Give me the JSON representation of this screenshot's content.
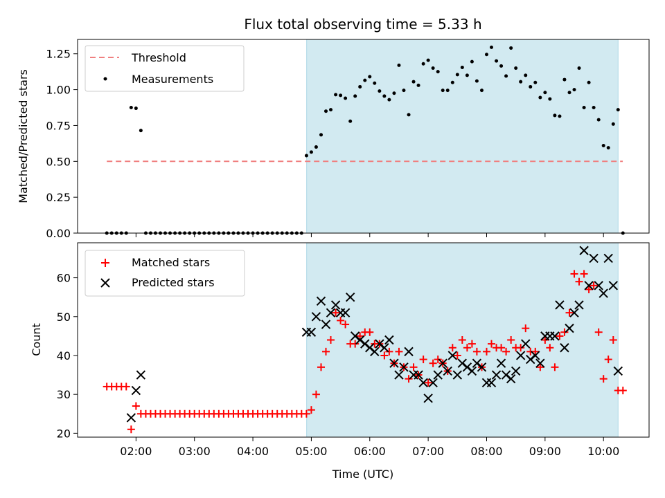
{
  "chart_data": [
    {
      "type": "scatter",
      "title": "Flux total observing time = 5.33 h",
      "ylabel": "Matched/Predicted stars",
      "ylim": [
        0,
        1.35
      ],
      "xlim": [
        1.0,
        10.78
      ],
      "yticks": [
        "0.00",
        "0.25",
        "0.50",
        "0.75",
        "1.00",
        "1.25"
      ],
      "ytick_values": [
        0,
        0.25,
        0.5,
        0.75,
        1.0,
        1.25
      ],
      "legend_position": "top-left",
      "shaded_interval": {
        "x0": 4.92,
        "x1": 10.25,
        "color": "#add8e6"
      },
      "threshold": {
        "name": "Threshold",
        "value": 0.5,
        "x0": 1.5,
        "x1": 10.33,
        "color": "#f08080"
      },
      "measurements": {
        "name": "Measurements",
        "color": "#000000",
        "x": [
          1.5,
          1.583,
          1.667,
          1.75,
          1.833,
          1.917,
          2.0,
          2.083,
          2.167,
          2.25,
          2.333,
          2.417,
          2.5,
          2.583,
          2.667,
          2.75,
          2.833,
          2.917,
          3.0,
          3.083,
          3.167,
          3.25,
          3.333,
          3.417,
          3.5,
          3.583,
          3.667,
          3.75,
          3.833,
          3.917,
          4.0,
          4.083,
          4.167,
          4.25,
          4.333,
          4.417,
          4.5,
          4.583,
          4.667,
          4.75,
          4.833,
          4.917,
          5.0,
          5.083,
          5.167,
          5.25,
          5.333,
          5.417,
          5.5,
          5.583,
          5.667,
          5.75,
          5.833,
          5.917,
          6.0,
          6.083,
          6.167,
          6.25,
          6.333,
          6.417,
          6.5,
          6.583,
          6.667,
          6.75,
          6.833,
          6.917,
          7.0,
          7.083,
          7.167,
          7.25,
          7.333,
          7.417,
          7.5,
          7.583,
          7.667,
          7.75,
          7.833,
          7.917,
          8.0,
          8.083,
          8.167,
          8.25,
          8.333,
          8.417,
          8.5,
          8.583,
          8.667,
          8.75,
          8.833,
          8.917,
          9.0,
          9.083,
          9.167,
          9.25,
          9.333,
          9.417,
          9.5,
          9.583,
          9.667,
          9.75,
          9.833,
          9.917,
          10.0,
          10.083,
          10.167,
          10.25,
          10.333
        ],
        "y": [
          0,
          0,
          0,
          0,
          0,
          0.875,
          0.87,
          0.715,
          0,
          0,
          0,
          0,
          0,
          0,
          0,
          0,
          0,
          0,
          0,
          0,
          0,
          0,
          0,
          0,
          0,
          0,
          0,
          0,
          0,
          0,
          0,
          0,
          0,
          0,
          0,
          0,
          0,
          0,
          0,
          0,
          0,
          0.54,
          0.565,
          0.6,
          0.685,
          0.85,
          0.86,
          0.965,
          0.96,
          0.94,
          0.78,
          0.955,
          1.02,
          1.065,
          1.09,
          1.045,
          0.99,
          0.955,
          0.93,
          0.975,
          1.17,
          0.995,
          0.825,
          1.055,
          1.03,
          1.18,
          1.205,
          1.15,
          1.125,
          0.995,
          0.995,
          1.05,
          1.105,
          1.155,
          1.1,
          1.195,
          1.06,
          0.995,
          1.245,
          1.295,
          1.2,
          1.165,
          1.095,
          1.29,
          1.15,
          1.055,
          1.1,
          1.02,
          1.05,
          0.945,
          0.98,
          0.935,
          0.82,
          0.815,
          1.07,
          0.98,
          1.0,
          1.15,
          0.875,
          1.05,
          0.875,
          0.79,
          0.61,
          0.595,
          0.76,
          0.86,
          0
        ]
      }
    },
    {
      "type": "scatter",
      "xlabel": "Time (UTC)",
      "ylabel": "Count",
      "ylim": [
        19,
        69
      ],
      "xlim": [
        1.0,
        10.78
      ],
      "yticks": [
        "20",
        "30",
        "40",
        "50",
        "60"
      ],
      "ytick_values": [
        20,
        30,
        40,
        50,
        60
      ],
      "xticks": [
        "02:00",
        "03:00",
        "04:00",
        "05:00",
        "06:00",
        "07:00",
        "08:00",
        "09:00",
        "10:00"
      ],
      "xtick_values": [
        2,
        3,
        4,
        5,
        6,
        7,
        8,
        9,
        10
      ],
      "legend_position": "top-left",
      "shaded_interval": {
        "x0": 4.92,
        "x1": 10.25,
        "color": "#add8e6"
      },
      "series": [
        {
          "name": "Matched stars",
          "marker": "plus",
          "color": "#ff0000",
          "x": [
            1.5,
            1.583,
            1.667,
            1.75,
            1.833,
            1.917,
            2.0,
            2.083,
            2.167,
            2.25,
            2.333,
            2.417,
            2.5,
            2.583,
            2.667,
            2.75,
            2.833,
            2.917,
            3.0,
            3.083,
            3.167,
            3.25,
            3.333,
            3.417,
            3.5,
            3.583,
            3.667,
            3.75,
            3.833,
            3.917,
            4.0,
            4.083,
            4.167,
            4.25,
            4.333,
            4.417,
            4.5,
            4.583,
            4.667,
            4.75,
            4.833,
            4.917,
            5.0,
            5.083,
            5.167,
            5.25,
            5.333,
            5.417,
            5.5,
            5.583,
            5.667,
            5.75,
            5.833,
            5.917,
            6.0,
            6.083,
            6.167,
            6.25,
            6.333,
            6.417,
            6.5,
            6.583,
            6.667,
            6.75,
            6.833,
            6.917,
            7.0,
            7.083,
            7.167,
            7.25,
            7.333,
            7.417,
            7.5,
            7.583,
            7.667,
            7.75,
            7.833,
            7.917,
            8.0,
            8.083,
            8.167,
            8.25,
            8.333,
            8.417,
            8.5,
            8.583,
            8.667,
            8.75,
            8.833,
            8.917,
            9.0,
            9.083,
            9.167,
            9.25,
            9.333,
            9.417,
            9.5,
            9.583,
            9.667,
            9.75,
            9.833,
            9.917,
            10.0,
            10.083,
            10.167,
            10.25,
            10.333
          ],
          "y": [
            32,
            32,
            32,
            32,
            32,
            21,
            27,
            25,
            25,
            25,
            25,
            25,
            25,
            25,
            25,
            25,
            25,
            25,
            25,
            25,
            25,
            25,
            25,
            25,
            25,
            25,
            25,
            25,
            25,
            25,
            25,
            25,
            25,
            25,
            25,
            25,
            25,
            25,
            25,
            25,
            25,
            25,
            26,
            30,
            37,
            41,
            44,
            51,
            49,
            48,
            43,
            43,
            45,
            46,
            46,
            43,
            43,
            40,
            41,
            38,
            41,
            37,
            34,
            37,
            35,
            39,
            33,
            38,
            39,
            38,
            36,
            42,
            40,
            44,
            42,
            43,
            41,
            37,
            41,
            43,
            42,
            42,
            41,
            44,
            42,
            42,
            47,
            41,
            41,
            37,
            44,
            42,
            37,
            45,
            46,
            51,
            61,
            59,
            61,
            57,
            58,
            46,
            34,
            39,
            44,
            31,
            31
          ]
        },
        {
          "name": "Predicted stars",
          "marker": "x",
          "color": "#000000",
          "x": [
            1.917,
            2.0,
            2.083,
            4.917,
            5.0,
            5.083,
            5.167,
            5.25,
            5.333,
            5.417,
            5.5,
            5.583,
            5.667,
            5.75,
            5.833,
            5.917,
            6.0,
            6.083,
            6.167,
            6.25,
            6.333,
            6.417,
            6.5,
            6.583,
            6.667,
            6.75,
            6.833,
            6.917,
            7.0,
            7.083,
            7.167,
            7.25,
            7.333,
            7.417,
            7.5,
            7.583,
            7.667,
            7.75,
            7.833,
            7.917,
            8.0,
            8.083,
            8.167,
            8.25,
            8.333,
            8.417,
            8.5,
            8.583,
            8.667,
            8.75,
            8.833,
            8.917,
            9.0,
            9.083,
            9.167,
            9.25,
            9.333,
            9.417,
            9.5,
            9.583,
            9.667,
            9.75,
            9.833,
            9.917,
            10.0,
            10.083,
            10.167,
            10.25
          ],
          "y": [
            24,
            31,
            35,
            46,
            46,
            50,
            54,
            48,
            51,
            53,
            51,
            51,
            55,
            45,
            44,
            43,
            42,
            41,
            43,
            42,
            44,
            38,
            35,
            37,
            41,
            35,
            35,
            33,
            29,
            33,
            35,
            38,
            36,
            40,
            35,
            38,
            37,
            36,
            38,
            37,
            33,
            33,
            35,
            38,
            35,
            34,
            36,
            40,
            43,
            39,
            40,
            38,
            45,
            45,
            45,
            53,
            42,
            47,
            51,
            53,
            67,
            58,
            65,
            58,
            56,
            65,
            58,
            36
          ]
        }
      ]
    }
  ]
}
